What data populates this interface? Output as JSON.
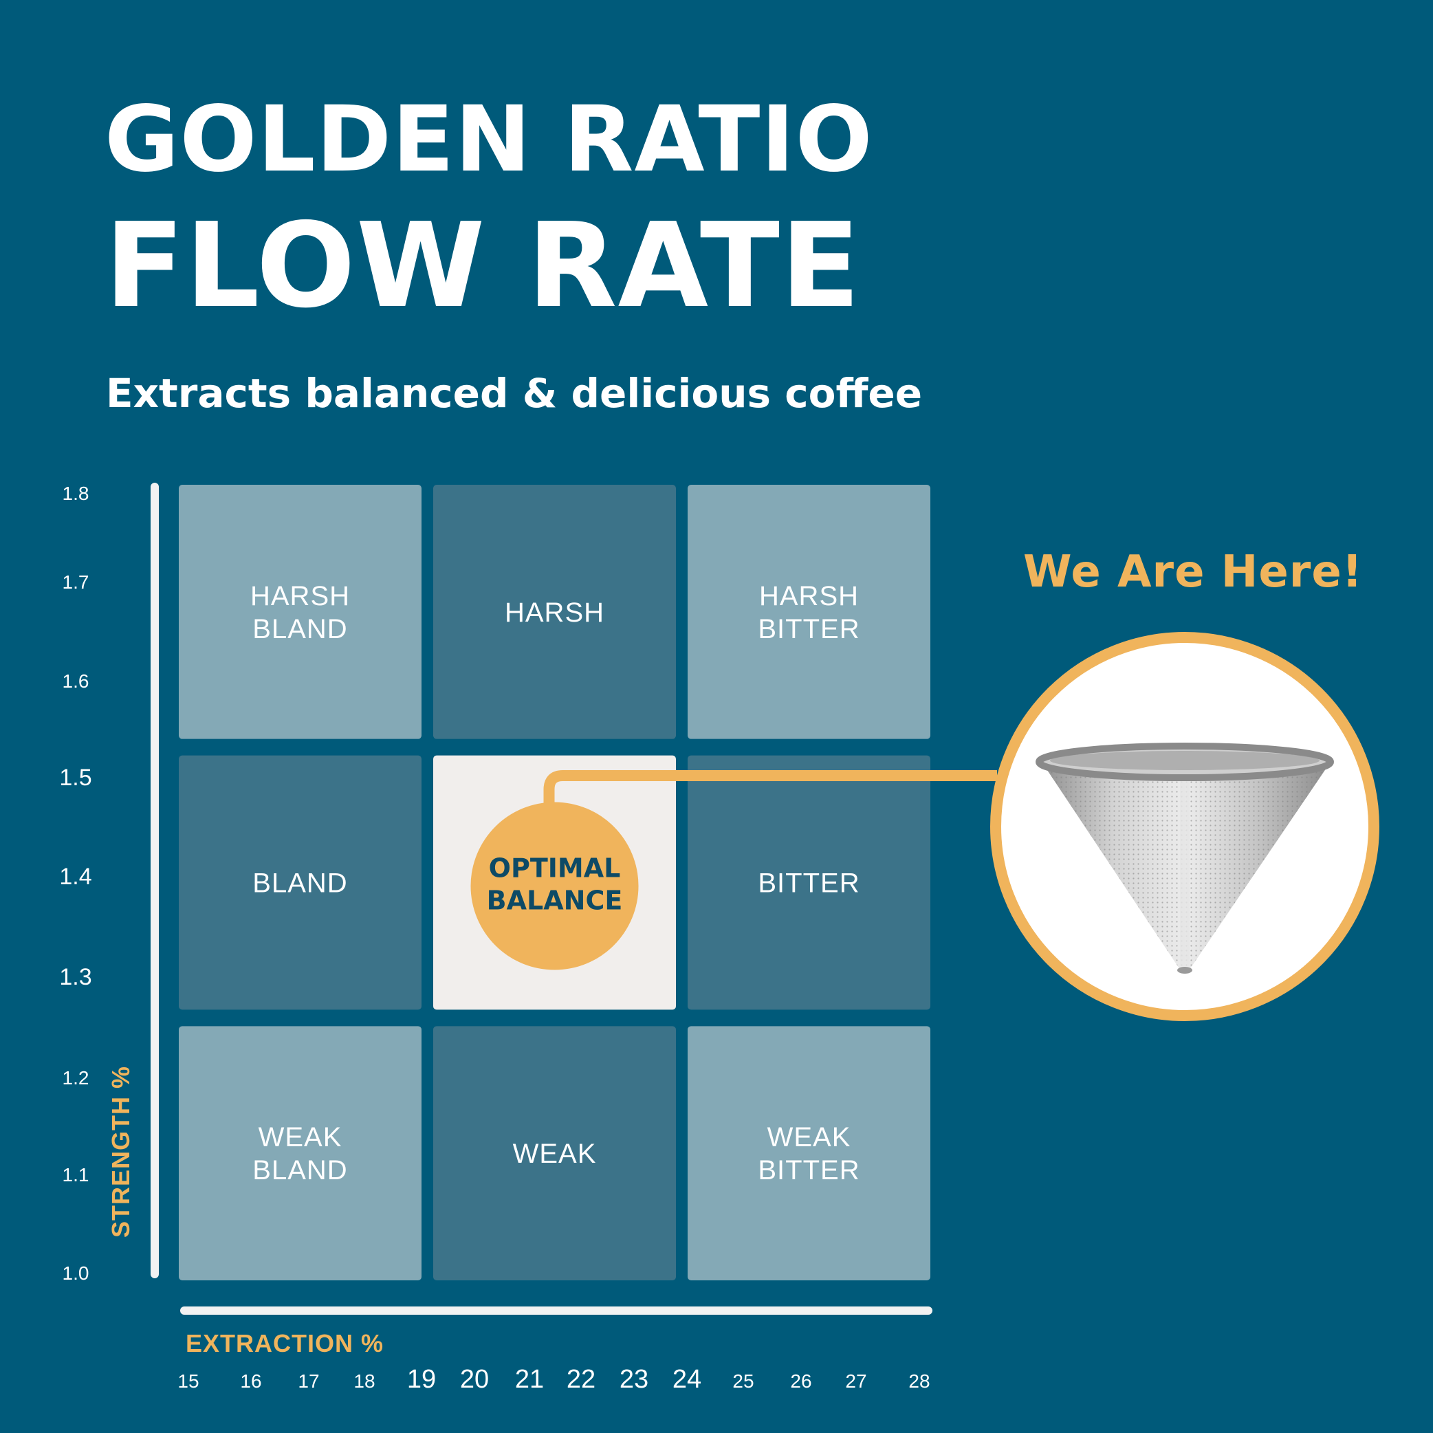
{
  "header": {
    "title_line1": "GOLDEN RATIO",
    "title_line2": "FLOW RATE",
    "subtitle": "Extracts balanced & delicious coffee"
  },
  "callout": {
    "text": "We Are Here!",
    "product_icon": "cone-filter-icon"
  },
  "colors": {
    "background": "#005a7a",
    "cell_light": "#84a9b6",
    "cell_dark": "#3c7389",
    "cell_optimal": "#f1eeec",
    "accent": "#f0b45c",
    "optimal_text": "#0d4a66"
  },
  "chart_data": {
    "type": "heatmap",
    "xlabel": "EXTRACTION %",
    "ylabel": "STRENGTH %",
    "xlim": [
      15,
      28
    ],
    "ylim": [
      1.0,
      1.8
    ],
    "x_ticks": [
      "15",
      "16",
      "17",
      "18",
      "19",
      "20",
      "21",
      "22",
      "23",
      "24",
      "25",
      "26",
      "27",
      "28"
    ],
    "y_ticks": [
      "1.8",
      "1.7",
      "1.6",
      "1.5",
      "1.4",
      "1.3",
      "1.2",
      "1.1",
      "1.0"
    ],
    "grid": false,
    "cells": [
      {
        "row": 0,
        "col": 0,
        "lines": [
          "HARSH",
          "BLAND"
        ],
        "shade": "light"
      },
      {
        "row": 0,
        "col": 1,
        "lines": [
          "HARSH"
        ],
        "shade": "dark"
      },
      {
        "row": 0,
        "col": 2,
        "lines": [
          "HARSH",
          "BITTER"
        ],
        "shade": "light"
      },
      {
        "row": 1,
        "col": 0,
        "lines": [
          "BLAND"
        ],
        "shade": "dark"
      },
      {
        "row": 1,
        "col": 1,
        "lines": [
          "OPTIMAL",
          "BALANCE"
        ],
        "shade": "optimal"
      },
      {
        "row": 1,
        "col": 2,
        "lines": [
          "BITTER"
        ],
        "shade": "dark"
      },
      {
        "row": 2,
        "col": 0,
        "lines": [
          "WEAK",
          "BLAND"
        ],
        "shade": "light"
      },
      {
        "row": 2,
        "col": 1,
        "lines": [
          "WEAK"
        ],
        "shade": "dark"
      },
      {
        "row": 2,
        "col": 2,
        "lines": [
          "WEAK",
          "BITTER"
        ],
        "shade": "light"
      }
    ]
  }
}
